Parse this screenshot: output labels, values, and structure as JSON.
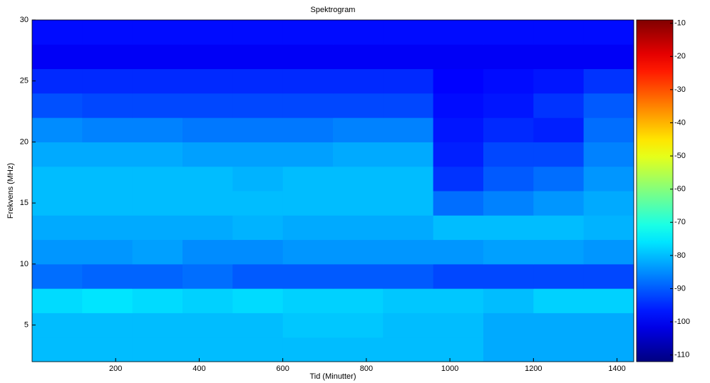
{
  "chart_data": {
    "type": "heatmap",
    "title": "Spektrogram",
    "x_label": "Tid (Minutter)",
    "y_label": "Frekvens (MHz)",
    "x_bins": [
      0,
      120,
      240,
      360,
      480,
      600,
      720,
      840,
      960,
      1080,
      1200,
      1320,
      1440
    ],
    "y_bins": [
      2,
      4,
      6,
      8,
      10,
      12,
      14,
      16,
      18,
      20,
      22,
      24,
      26,
      28,
      30
    ],
    "values": [
      [
        -80,
        -80,
        -80,
        -80,
        -80,
        -80,
        -80,
        -80,
        -80,
        -82,
        -82,
        -82
      ],
      [
        -80,
        -80,
        -80,
        -80,
        -80,
        -79,
        -79,
        -80,
        -80,
        -82,
        -82,
        -82
      ],
      [
        -77,
        -76,
        -77,
        -78,
        -77,
        -78,
        -78,
        -79,
        -79,
        -80,
        -78,
        -78
      ],
      [
        -88,
        -89,
        -89,
        -88,
        -90,
        -90,
        -90,
        -90,
        -92,
        -92,
        -92,
        -92
      ],
      [
        -84,
        -84,
        -83,
        -85,
        -85,
        -84,
        -84,
        -84,
        -84,
        -83,
        -83,
        -84
      ],
      [
        -82,
        -82,
        -82,
        -82,
        -81,
        -82,
        -82,
        -82,
        -80,
        -80,
        -80,
        -81
      ],
      [
        -80,
        -80,
        -80,
        -80,
        -80,
        -80,
        -80,
        -80,
        -88,
        -86,
        -84,
        -82
      ],
      [
        -80,
        -80,
        -80,
        -80,
        -81,
        -80,
        -80,
        -80,
        -94,
        -90,
        -88,
        -84
      ],
      [
        -82,
        -82,
        -82,
        -83,
        -83,
        -83,
        -82,
        -82,
        -96,
        -92,
        -92,
        -86
      ],
      [
        -85,
        -86,
        -86,
        -87,
        -87,
        -87,
        -86,
        -86,
        -97,
        -95,
        -96,
        -88
      ],
      [
        -91,
        -92,
        -92,
        -92,
        -92,
        -92,
        -92,
        -92,
        -98,
        -97,
        -94,
        -90
      ],
      [
        -95,
        -95,
        -95,
        -95,
        -95,
        -95,
        -95,
        -95,
        -99,
        -98,
        -97,
        -94
      ],
      [
        -100,
        -100,
        -100,
        -100,
        -100,
        -100,
        -100,
        -100,
        -100,
        -100,
        -100,
        -100
      ],
      [
        -98,
        -98,
        -98,
        -98,
        -98,
        -98,
        -98,
        -98,
        -98,
        -98,
        -98,
        -98
      ]
    ],
    "colorscale": "jet",
    "clim": [
      -112,
      -9
    ],
    "cticks": [
      -10,
      -20,
      -30,
      -40,
      -50,
      -60,
      -70,
      -80,
      -90,
      -100,
      -110
    ],
    "xlim": [
      0,
      1440
    ],
    "xticks": [
      200,
      400,
      600,
      800,
      1000,
      1200,
      1400
    ],
    "ylim": [
      2,
      30
    ],
    "yticks": [
      5,
      10,
      15,
      20,
      25,
      30
    ]
  }
}
